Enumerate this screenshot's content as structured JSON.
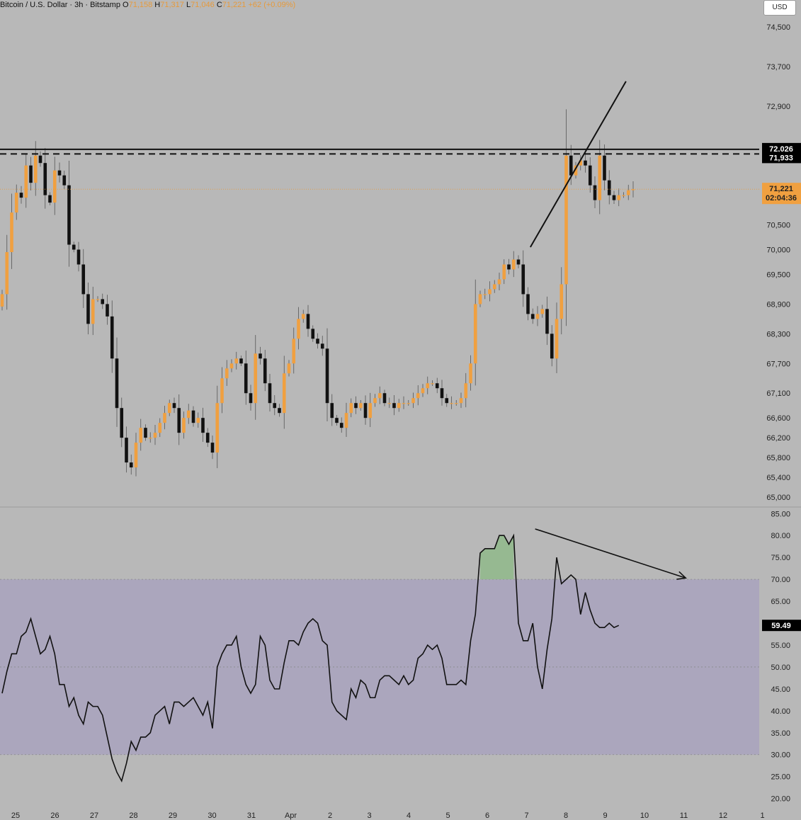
{
  "header": {
    "symbol": "Bitcoin / U.S. Dollar · 3h · Bitstamp",
    "o_label": "O",
    "o": "71,158",
    "h_label": "H",
    "h": "71,317",
    "l_label": "L",
    "l": "71,046",
    "c_label": "C",
    "c": "71,221",
    "change": "+62 (+0.09%)"
  },
  "currency_button": "USD",
  "colors": {
    "up": "#f0a040",
    "down": "#111111",
    "background": "#b8b8b8",
    "rsi_band": "#aba6bd",
    "overbought_fill": "#8fb98a"
  },
  "chart_data": [
    {
      "type": "candlestick",
      "title": "Bitcoin / U.S. Dollar · 3h · Bitstamp",
      "ylim": [
        64800,
        74900
      ],
      "yticks": [
        "74,500",
        "73,700",
        "72,900",
        "70,500",
        "70,000",
        "69,500",
        "68,900",
        "68,300",
        "67,700",
        "67,100",
        "66,600",
        "66,200",
        "65,800",
        "65,400",
        "65,000"
      ],
      "x_labels": [
        "25",
        "26",
        "27",
        "28",
        "29",
        "30",
        "31",
        "Apr",
        "2",
        "3",
        "4",
        "5",
        "6",
        "7",
        "8",
        "9",
        "10",
        "11",
        "12",
        "1"
      ],
      "levels": [
        {
          "price": 72026,
          "style": "solid",
          "label": "72,026"
        },
        {
          "price": 71933,
          "style": "dashed",
          "label": "71,933"
        }
      ],
      "last_price": {
        "price": 71221,
        "label": "71,221",
        "countdown": "02:04:36"
      },
      "trendline": {
        "from": {
          "bar": 110.5,
          "price": 70050
        },
        "to": {
          "bar": 130.5,
          "price": 73400
        }
      },
      "closes": [
        69100,
        69950,
        70750,
        71150,
        71050,
        71700,
        71350,
        71900,
        71750,
        71100,
        70950,
        71600,
        71500,
        71300,
        70100,
        70000,
        69700,
        69100,
        68500,
        69000,
        69000,
        68900,
        68650,
        67800,
        66800,
        66200,
        65700,
        65600,
        66100,
        66400,
        66200,
        66200,
        66300,
        66500,
        66700,
        66900,
        66800,
        66300,
        66600,
        66750,
        66500,
        66600,
        66300,
        66100,
        65900,
        66900,
        67400,
        67600,
        67700,
        67800,
        67700,
        67100,
        66900,
        67900,
        67800,
        67300,
        66900,
        66800,
        66700,
        67500,
        67700,
        68200,
        68600,
        68700,
        68400,
        68200,
        68100,
        68000,
        66900,
        66600,
        66500,
        66400,
        66700,
        66900,
        66800,
        66900,
        66600,
        66900,
        67000,
        67100,
        66900,
        66900,
        66800,
        66900,
        66900,
        66900,
        67000,
        67100,
        67200,
        67300,
        67300,
        67200,
        67000,
        66900,
        66900,
        66900,
        67000,
        67300,
        67700,
        68900,
        69100,
        69100,
        69200,
        69300,
        69400,
        69700,
        69600,
        69800,
        69700,
        69100,
        68700,
        68600,
        68700,
        68800,
        68300,
        67800,
        68600,
        69300,
        71900,
        71500,
        71700,
        71800,
        71700,
        71300,
        71000,
        71900,
        71400,
        71100,
        71000,
        71100,
        71100,
        71200,
        71221
      ]
    },
    {
      "type": "line",
      "title": "RSI",
      "ylim": [
        18,
        86.5
      ],
      "yticks": [
        "85.00",
        "80.00",
        "75.00",
        "70.00",
        "65.00",
        "60.00",
        "55.00",
        "50.00",
        "45.00",
        "40.00",
        "35.00",
        "30.00",
        "25.00",
        "20.00"
      ],
      "band": [
        30,
        70
      ],
      "midline": 50,
      "last_value": "59.49",
      "divergence_arrow": {
        "from": {
          "bar": 111.5,
          "value": 81.5
        },
        "to": {
          "bar": 143,
          "value": 70.3
        }
      },
      "values": [
        44,
        49,
        53,
        53,
        57,
        58,
        61,
        57,
        53,
        54,
        57,
        53,
        46,
        46,
        41,
        43,
        39,
        37,
        42,
        41,
        41,
        39,
        34,
        29,
        26,
        24,
        28,
        33,
        31,
        34,
        34,
        35,
        39,
        40,
        41,
        37,
        42,
        42,
        41,
        42,
        43,
        41,
        39,
        42,
        36,
        50,
        53,
        55,
        55,
        57,
        50,
        46,
        44,
        46,
        57,
        55,
        47,
        45,
        45,
        51,
        56,
        56,
        55,
        58,
        60,
        61,
        60,
        56,
        55,
        42,
        40,
        39,
        38,
        45,
        43,
        47,
        46,
        43,
        43,
        47,
        48,
        48,
        47,
        46,
        48,
        46,
        47,
        52,
        53,
        55,
        54,
        55,
        52,
        46,
        46,
        46,
        47,
        46,
        56,
        62,
        76,
        77,
        77,
        77,
        80,
        80,
        78,
        80,
        60,
        56,
        56,
        60,
        50,
        45,
        54,
        61,
        75,
        69,
        70,
        71,
        70,
        62,
        67,
        63,
        60,
        59,
        59,
        60,
        59,
        59.49
      ]
    }
  ]
}
